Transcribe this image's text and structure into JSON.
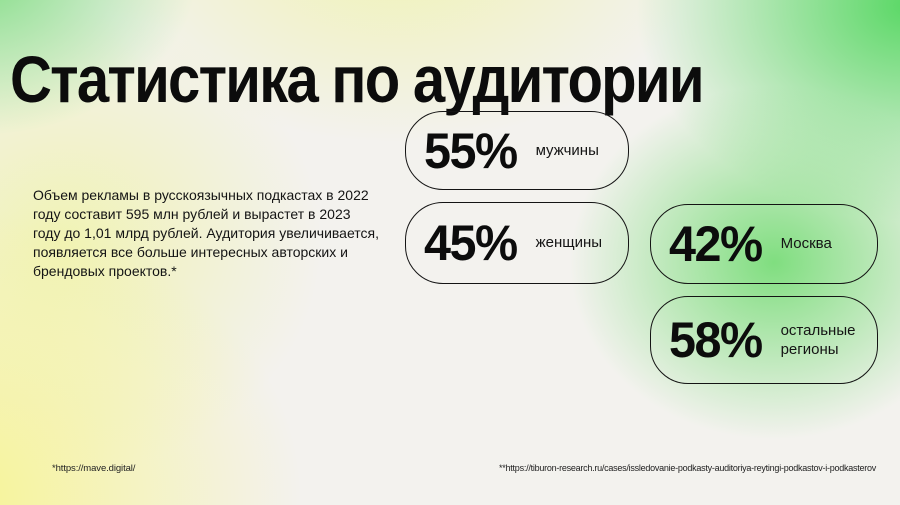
{
  "slide": {
    "title": "Статистика по аудитории",
    "description": "Объем рекламы в русскоязычных подкастах в 2022\nгоду составит 595 млн рублей и вырастет в 2023\nгоду до 1,01 млрд рублей. Аудитория увеличивается,\nпоявляется все больше интересных авторских и\nбрендовых проектов.*",
    "stats": [
      {
        "value": "55%",
        "label": "мужчины"
      },
      {
        "value": "45%",
        "label": "женщины"
      },
      {
        "value": "42%",
        "label": "Москва"
      },
      {
        "value": "58%",
        "label": "остальные\nрегионы"
      }
    ],
    "footnotes": {
      "left": "*https://mave.digital/",
      "right": "**https://tiburon-research.ru/cases/issledovanie-podkasty-auditoriya-reytingi-podkastov-i-podkasterov"
    },
    "colors": {
      "text": "#111111",
      "pill_border": "#141414",
      "bg_green_top_left": "#7cdc7e",
      "bg_green_top_right": "#55d761",
      "bg_green_mid_right": "#76dc76",
      "bg_yellow_top_center": "#f0f3b1",
      "bg_yellow_bottom_left": "#f7f493",
      "bg_base": "#f3f2ee"
    }
  }
}
